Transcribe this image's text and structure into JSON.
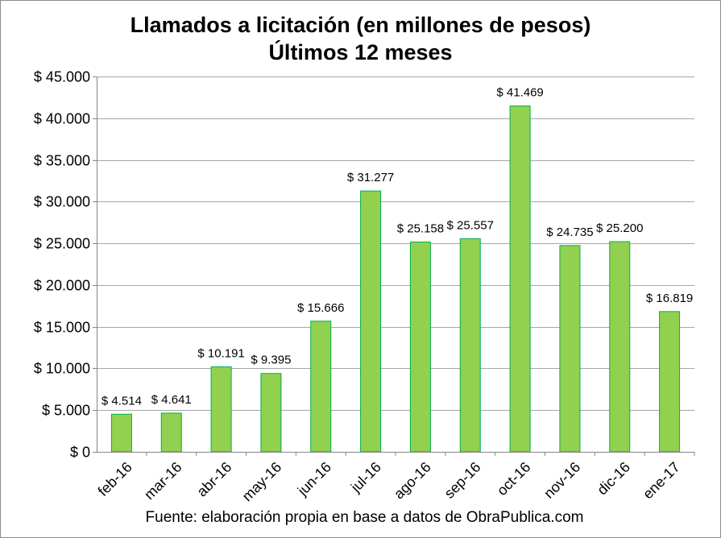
{
  "chart_data": {
    "type": "bar",
    "title_lines": [
      "Llamados a licitación (en millones de pesos)",
      "Últimos 12 meses"
    ],
    "categories": [
      "feb-16",
      "mar-16",
      "abr-16",
      "may-16",
      "jun-16",
      "jul-16",
      "ago-16",
      "sep-16",
      "oct-16",
      "nov-16",
      "dic-16",
      "ene-17"
    ],
    "values": [
      4514,
      4641,
      10191,
      9395,
      15666,
      31277,
      25158,
      25557,
      41469,
      24735,
      25200,
      16819
    ],
    "value_labels": [
      "$ 4.514",
      "$ 4.641",
      "$ 10.191",
      "$ 9.395",
      "$ 15.666",
      "$ 31.277",
      "$ 25.158",
      "$ 25.557",
      "$ 41.469",
      "$ 24.735",
      "$ 25.200",
      "$ 16.819"
    ],
    "ylim": [
      0,
      45000
    ],
    "yticks": [
      0,
      5000,
      10000,
      15000,
      20000,
      25000,
      30000,
      35000,
      40000,
      45000
    ],
    "ytick_labels": [
      "$ 0",
      "$ 5.000",
      "$ 10.000",
      "$ 15.000",
      "$ 20.000",
      "$ 25.000",
      "$ 30.000",
      "$ 35.000",
      "$ 40.000",
      "$ 45.000"
    ],
    "grid": true,
    "bar_color": "#92d050",
    "bar_edge_color": "#00b050",
    "source": "Fuente: elaboración propia en base a datos de ObraPublica.com"
  }
}
